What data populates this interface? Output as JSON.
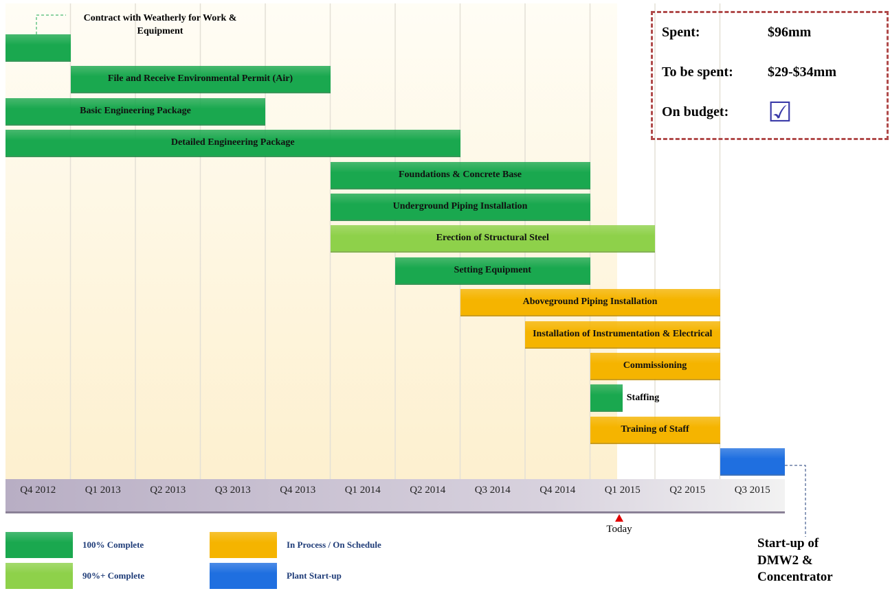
{
  "chart_data": {
    "type": "gantt",
    "categories": [
      "Q4 2012",
      "Q1 2013",
      "Q2 2013",
      "Q3 2013",
      "Q4 2013",
      "Q1 2014",
      "Q2 2014",
      "Q3 2014",
      "Q4 2014",
      "Q1 2015",
      "Q2 2015",
      "Q3 2015"
    ],
    "legend": [
      {
        "name": "100% Complete",
        "color": "#1aa84f"
      },
      {
        "name": "90%+ Complete",
        "color": "#8ed14a"
      },
      {
        "name": "In Process / On Schedule",
        "color": "#f5b400"
      },
      {
        "name": "Plant Start-up",
        "color": "#1f6fe0"
      }
    ],
    "tasks": [
      {
        "name": "Contract with Weatherly for Work & Equipment",
        "start": 0,
        "end": 1,
        "status": 0
      },
      {
        "name": "File and Receive Environmental Permit (Air)",
        "start": 1,
        "end": 5,
        "status": 0
      },
      {
        "name": "Basic Engineering Package",
        "start": 0,
        "end": 4,
        "status": 0
      },
      {
        "name": "Detailed Engineering Package",
        "start": 0,
        "end": 7,
        "status": 0
      },
      {
        "name": "Foundations & Concrete Base",
        "start": 5,
        "end": 9,
        "status": 0
      },
      {
        "name": "Underground Piping Installation",
        "start": 5,
        "end": 9,
        "status": 0
      },
      {
        "name": "Erection of Structural Steel",
        "start": 5,
        "end": 10,
        "status": 1
      },
      {
        "name": "Setting Equipment",
        "start": 6,
        "end": 9,
        "status": 0
      },
      {
        "name": "Aboveground Piping Installation",
        "start": 7,
        "end": 11,
        "status": 2
      },
      {
        "name": "Installation of Instrumentation & Electrical",
        "start": 8,
        "end": 11,
        "status": 2
      },
      {
        "name": "Commissioning",
        "start": 9,
        "end": 11,
        "status": 2
      },
      {
        "name": "Staffing",
        "start": 9,
        "end": 9.5,
        "status": 0
      },
      {
        "name": "Training of Staff",
        "start": 9,
        "end": 11,
        "status": 2
      },
      {
        "name": "Start-up of DMW2 & Concentrator",
        "start": 11,
        "end": 12,
        "status": 3
      }
    ],
    "today": 9.45,
    "today_label": "Today",
    "budget": [
      {
        "label": "Spent:",
        "value": "$96mm"
      },
      {
        "label": "To be spent:",
        "value": "$29-$34mm"
      },
      {
        "label": "On budget:",
        "value": "☑"
      }
    ]
  }
}
